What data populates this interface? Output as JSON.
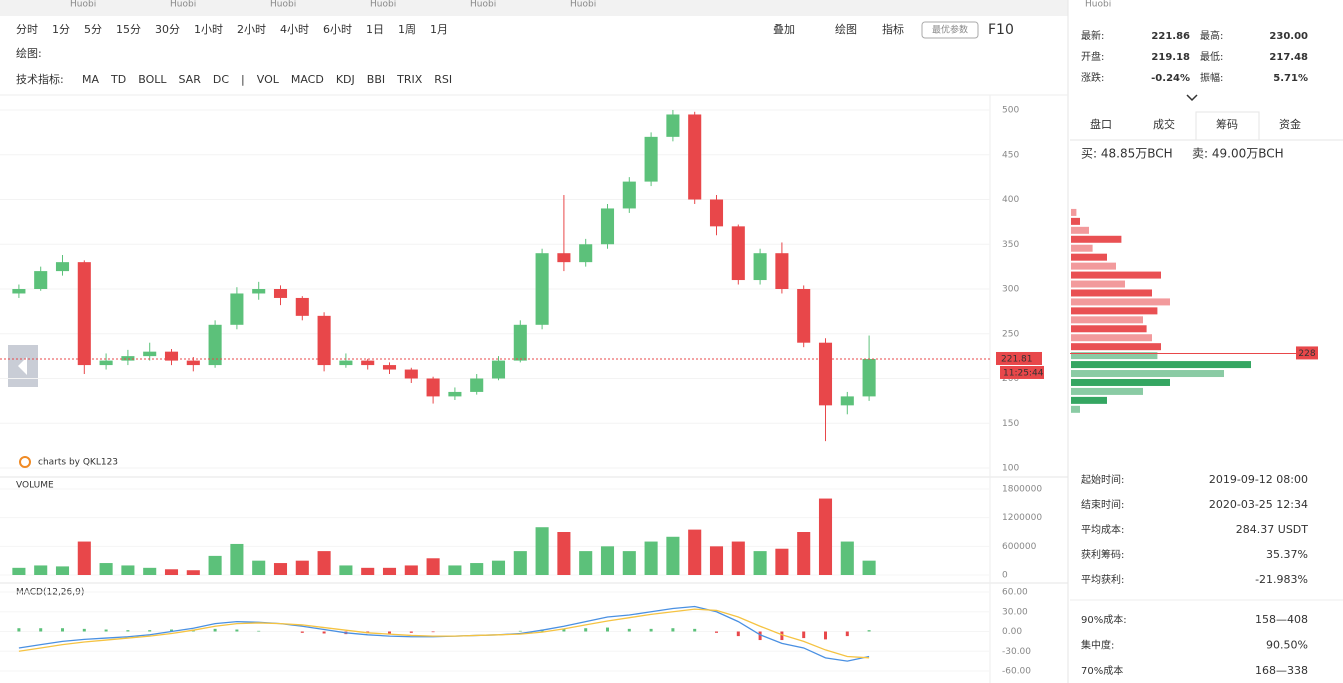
{
  "tabs": [
    "Huobi",
    "Huobi",
    "Huobi",
    "Huobi",
    "Huobi",
    "Huobi"
  ],
  "header_exchange": "Huobi",
  "toolbar": {
    "periods": [
      "分时",
      "1分",
      "5分",
      "15分",
      "30分",
      "1小时",
      "2小时",
      "4小时",
      "6小时",
      "1日",
      "1周",
      "1月"
    ],
    "active_period_index": 9,
    "tools": [
      "叠加",
      "绘图",
      "指标"
    ],
    "best_params": "最优参数",
    "f10": "F10",
    "draw_label": "绘图:",
    "indicator_label": "技术指标:",
    "indicators": [
      "MA",
      "TD",
      "BOLL",
      "SAR",
      "DC",
      "|",
      "VOL",
      "MACD",
      "KDJ",
      "BBI",
      "TRIX",
      "RSI"
    ],
    "active_indicators": [
      6,
      7
    ]
  },
  "chart_data": [
    {
      "type": "candlestick",
      "watermark": "charts by QKL123",
      "candles": [
        [
          295,
          305,
          290,
          300
        ],
        [
          300,
          325,
          298,
          320
        ],
        [
          320,
          338,
          315,
          330
        ],
        [
          330,
          332,
          205,
          215
        ],
        [
          215,
          228,
          210,
          220
        ],
        [
          220,
          232,
          215,
          225
        ],
        [
          225,
          240,
          220,
          230
        ],
        [
          230,
          233,
          215,
          220
        ],
        [
          220,
          224,
          208,
          215
        ],
        [
          215,
          265,
          212,
          260
        ],
        [
          260,
          302,
          255,
          295
        ],
        [
          295,
          308,
          288,
          300
        ],
        [
          300,
          304,
          282,
          290
        ],
        [
          290,
          292,
          265,
          270
        ],
        [
          270,
          274,
          208,
          215
        ],
        [
          215,
          228,
          212,
          220
        ],
        [
          220,
          222,
          210,
          215
        ],
        [
          215,
          218,
          205,
          210
        ],
        [
          210,
          212,
          195,
          200
        ],
        [
          200,
          202,
          172,
          180
        ],
        [
          180,
          190,
          176,
          185
        ],
        [
          185,
          205,
          182,
          200
        ],
        [
          200,
          225,
          198,
          220
        ],
        [
          220,
          265,
          218,
          260
        ],
        [
          260,
          345,
          255,
          340
        ],
        [
          340,
          405,
          320,
          330
        ],
        [
          330,
          356,
          325,
          350
        ],
        [
          350,
          395,
          345,
          390
        ],
        [
          390,
          425,
          385,
          420
        ],
        [
          420,
          475,
          415,
          470
        ],
        [
          470,
          500,
          465,
          495
        ],
        [
          495,
          498,
          395,
          400
        ],
        [
          400,
          405,
          360,
          370
        ],
        [
          370,
          372,
          305,
          310
        ],
        [
          310,
          345,
          305,
          340
        ],
        [
          340,
          352,
          295,
          300
        ],
        [
          300,
          304,
          235,
          240
        ],
        [
          240,
          245,
          130,
          170
        ],
        [
          170,
          185,
          160,
          180
        ],
        [
          180,
          248,
          175,
          221.81
        ]
      ],
      "up_color": "#5cc17a",
      "down_color": "#e8474a",
      "ylim": [
        100,
        500
      ],
      "yticks": [
        100,
        150,
        200,
        250,
        300,
        350,
        400,
        450,
        500
      ],
      "last_price": {
        "value": 221.81,
        "label": "221.81"
      },
      "time_label": "11:25:44"
    },
    {
      "type": "bar",
      "title": "VOLUME",
      "values": [
        150000,
        200000,
        180000,
        700000,
        250000,
        200000,
        150000,
        120000,
        100000,
        400000,
        650000,
        300000,
        250000,
        300000,
        500000,
        200000,
        150000,
        150000,
        200000,
        350000,
        200000,
        250000,
        300000,
        500000,
        1000000,
        900000,
        500000,
        600000,
        500000,
        700000,
        800000,
        950000,
        600000,
        700000,
        500000,
        550000,
        900000,
        1600000,
        700000,
        300000
      ],
      "ylim": [
        0,
        1800000
      ],
      "yticks": [
        0,
        600000,
        1200000,
        1800000
      ]
    },
    {
      "type": "macd",
      "title": "MACD(12,26,9)",
      "series": [
        {
          "name": "DIF",
          "color": "#4a90e2",
          "values": [
            -25,
            -20,
            -15,
            -12,
            -10,
            -8,
            -5,
            0,
            5,
            12,
            15,
            14,
            12,
            8,
            3,
            -2,
            -5,
            -7,
            -8,
            -8,
            -7,
            -6,
            -5,
            -3,
            2,
            8,
            15,
            22,
            25,
            30,
            35,
            38,
            30,
            15,
            -5,
            -18,
            -25,
            -40,
            -45,
            -38
          ]
        },
        {
          "name": "DEA",
          "color": "#f5c342",
          "values": [
            -30,
            -25,
            -20,
            -16,
            -13,
            -10,
            -7,
            -3,
            2,
            8,
            12,
            13,
            12,
            10,
            6,
            2,
            -2,
            -4,
            -6,
            -7,
            -7,
            -6,
            -5,
            -4,
            -1,
            4,
            10,
            16,
            21,
            26,
            30,
            34,
            32,
            22,
            8,
            -5,
            -15,
            -28,
            -38,
            -40
          ]
        }
      ],
      "hist": [
        5,
        5,
        5,
        4,
        3,
        2,
        2,
        3,
        3,
        4,
        3,
        1,
        0,
        -2,
        -3,
        -4,
        -3,
        -3,
        -2,
        -1,
        0,
        0,
        0,
        1,
        3,
        4,
        5,
        6,
        4,
        4,
        5,
        4,
        -2,
        -7,
        -13,
        -13,
        -10,
        -12,
        -7,
        2
      ],
      "ylim": [
        -60,
        60
      ],
      "yticks": [
        {
          "value": -60,
          "label": "-60.00"
        },
        {
          "value": -30,
          "label": "-30.00"
        },
        {
          "value": 0,
          "label": "0.00"
        },
        {
          "value": 30,
          "label": "30.00"
        },
        {
          "value": 60,
          "label": "60.00"
        }
      ]
    }
  ],
  "quote": [
    [
      {
        "label": "最新:",
        "value": "221.86",
        "color": "#333"
      },
      {
        "label": "最高:",
        "value": "230.00",
        "color": "#2bb36b"
      }
    ],
    [
      {
        "label": "开盘:",
        "value": "219.18",
        "color": "#333"
      },
      {
        "label": "最低:",
        "value": "217.48",
        "color": "#e8474a"
      }
    ],
    [
      {
        "label": "涨跌:",
        "value": "-0.24%",
        "color": "#e8474a"
      },
      {
        "label": "振幅:",
        "value": "5.71%",
        "color": "#e8474a"
      }
    ]
  ],
  "panel_tabs": [
    "盘口",
    "成交",
    "筹码",
    "资金"
  ],
  "active_panel_tab": 2,
  "buy": "买: 48.85万BCH",
  "sell": "卖: 49.00万BCH",
  "chips": {
    "prices": [
      385,
      375,
      365,
      355,
      345,
      335,
      325,
      315,
      305,
      295,
      285,
      275,
      265,
      255,
      245,
      235,
      225,
      215,
      205,
      195,
      185,
      175,
      165
    ],
    "values": [
      3,
      5,
      10,
      28,
      12,
      20,
      25,
      50,
      30,
      45,
      55,
      48,
      40,
      42,
      45,
      50,
      48,
      100,
      85,
      55,
      40,
      20,
      5
    ],
    "xlim": [
      0,
      100
    ],
    "current": {
      "value": 228,
      "label": "228"
    }
  },
  "stats": [
    {
      "label": "起始时间:",
      "value": "2019-09-12 08:00",
      "color": "#333"
    },
    {
      "label": "结束时间:",
      "value": "2020-03-25 12:34",
      "color": "#333"
    },
    {
      "label": "平均成本:",
      "value": "284.37 USDT",
      "color": "#e8474a"
    },
    {
      "label": "获利筹码:",
      "value": "35.37%",
      "color": "#333"
    },
    {
      "label": "平均获利:",
      "value": "-21.983%",
      "color": "#e8474a"
    },
    {
      "label": "90%成本:",
      "value": "158—408",
      "color": "#333"
    },
    {
      "label": "集中度:",
      "value": "90.50%",
      "color": "#333"
    },
    {
      "label": "70%成本",
      "value": "168—338",
      "color": "#333"
    }
  ]
}
